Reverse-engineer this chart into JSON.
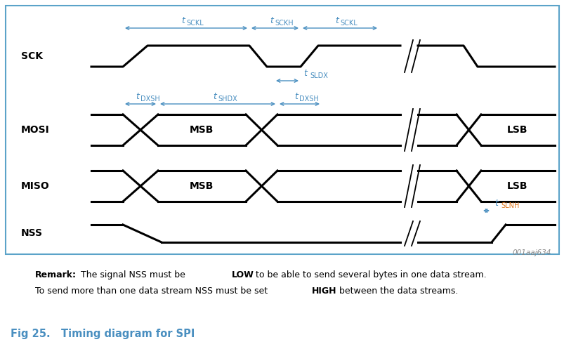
{
  "bg_color": "#ffffff",
  "border_color": "#5ba3c9",
  "signal_color": "#000000",
  "timing_color": "#4a8fc0",
  "highlight_color": "#e07820",
  "fig_width": 8.04,
  "fig_height": 4.97,
  "dpi": 100,
  "signals": [
    "SCK",
    "MOSI",
    "MISO",
    "NSS"
  ],
  "caption_text": "Fig 25.   Timing diagram for SPI",
  "watermark": "001aaj634"
}
